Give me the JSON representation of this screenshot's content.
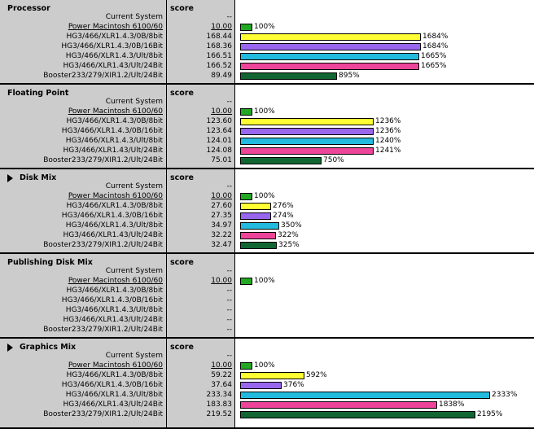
{
  "columns": {
    "score_header": "score"
  },
  "colors": {
    "baseline": "#22a822",
    "XLR1.4.3/0B/8bit": "#ffff33",
    "XLR1.4.3/0B/16bit": "#9966ee",
    "XLR1.4.3/Ult/8bit": "#22bbdd",
    "XLR1.43/Ult/24Bit": "#ee4499",
    "Booster": "#116633"
  },
  "sections": [
    {
      "title": "Processor",
      "has_triangle": false,
      "rows": [
        {
          "label": "Current System",
          "score": "--",
          "pct": null,
          "color": null,
          "underline": false
        },
        {
          "label": "Power Macintosh 6100/60",
          "score": "10.00",
          "pct": "100%",
          "value": 100,
          "color": "#22a822",
          "underline": true
        },
        {
          "label": "HG3/466/XLR1.4.3/0B/8bit",
          "score": "168.44",
          "pct": "1684%",
          "value": 1684,
          "color": "#ffff33",
          "underline": false
        },
        {
          "label": "HG3/466/XLR1.4.3/0B/16Bit",
          "score": "168.36",
          "pct": "1684%",
          "value": 1684,
          "color": "#9966ee",
          "underline": false
        },
        {
          "label": "HG3/466/XLR1.4.3/Ult/8bit",
          "score": "166.51",
          "pct": "1665%",
          "value": 1665,
          "color": "#22bbdd",
          "underline": false
        },
        {
          "label": "HG3/466/XLR1.43/Ult/24Bit",
          "score": "166.52",
          "pct": "1665%",
          "value": 1665,
          "color": "#ee4499",
          "underline": false
        },
        {
          "label": "Booster233/279/XIR1.2/Ult/24Bit",
          "score": "89.49",
          "pct": "895%",
          "value": 895,
          "color": "#116633",
          "underline": false
        }
      ]
    },
    {
      "title": "Floating Point",
      "has_triangle": false,
      "rows": [
        {
          "label": "Current System",
          "score": "--",
          "pct": null,
          "color": null,
          "underline": false
        },
        {
          "label": "Power Macintosh 6100/60",
          "score": "10.00",
          "pct": "100%",
          "value": 100,
          "color": "#22a822",
          "underline": true
        },
        {
          "label": "HG3/466/XLR1.4.3/0B/8bit",
          "score": "123.60",
          "pct": "1236%",
          "value": 1236,
          "color": "#ffff33",
          "underline": false
        },
        {
          "label": "HG3/466/XLR1.4.3/0B/16bit",
          "score": "123.64",
          "pct": "1236%",
          "value": 1236,
          "color": "#9966ee",
          "underline": false
        },
        {
          "label": "HG3/466/XLR1.4.3/Ult/8bit",
          "score": "124.01",
          "pct": "1240%",
          "value": 1240,
          "color": "#22bbdd",
          "underline": false
        },
        {
          "label": "HG3/466/XLR1.43/Ult/24Bit",
          "score": "124.08",
          "pct": "1241%",
          "value": 1241,
          "color": "#ee4499",
          "underline": false
        },
        {
          "label": "Booster233/279/XIR1.2/Ult/24Bit",
          "score": "75.01",
          "pct": "750%",
          "value": 750,
          "color": "#116633",
          "underline": false
        }
      ]
    },
    {
      "title": "Disk Mix",
      "has_triangle": true,
      "rows": [
        {
          "label": "Current System",
          "score": "--",
          "pct": null,
          "color": null,
          "underline": false
        },
        {
          "label": "Power Macintosh 6100/60",
          "score": "10.00",
          "pct": "100%",
          "value": 100,
          "color": "#22a822",
          "underline": true
        },
        {
          "label": "HG3/466/XLR1.4.3/0B/8bit",
          "score": "27.60",
          "pct": "276%",
          "value": 276,
          "color": "#ffff33",
          "underline": false
        },
        {
          "label": "HG3/466/XLR1.4.3/0B/16bit",
          "score": "27.35",
          "pct": "274%",
          "value": 274,
          "color": "#9966ee",
          "underline": false
        },
        {
          "label": "HG3/466/XLR1.4.3/Ult/8bit",
          "score": "34.97",
          "pct": "350%",
          "value": 350,
          "color": "#22bbdd",
          "underline": false
        },
        {
          "label": "HG3/466/XLR1.43/Ult/24Bit",
          "score": "32.22",
          "pct": "322%",
          "value": 322,
          "color": "#ee4499",
          "underline": false
        },
        {
          "label": "Booster233/279/XIR1.2/Ult/24Bit",
          "score": "32.47",
          "pct": "325%",
          "value": 325,
          "color": "#116633",
          "underline": false
        }
      ]
    },
    {
      "title": "Publishing Disk Mix",
      "has_triangle": false,
      "rows": [
        {
          "label": "Current System",
          "score": "--",
          "pct": null,
          "color": null,
          "underline": false
        },
        {
          "label": "Power Macintosh 6100/60",
          "score": "10.00",
          "pct": "100%",
          "value": 100,
          "color": "#22a822",
          "underline": true
        },
        {
          "label": "HG3/466/XLR1.4.3/0B/8bit",
          "score": "--",
          "pct": null,
          "color": null,
          "underline": false
        },
        {
          "label": "HG3/466/XLR1.4.3/0B/16bit",
          "score": "--",
          "pct": null,
          "color": null,
          "underline": false
        },
        {
          "label": "HG3/466/XLR1.4.3/Ult/8bit",
          "score": "--",
          "pct": null,
          "color": null,
          "underline": false
        },
        {
          "label": "HG3/466/XLR1.43/Ult/24Bit",
          "score": "--",
          "pct": null,
          "color": null,
          "underline": false
        },
        {
          "label": "Booster233/279/XIR1.2/Ult/24Bit",
          "score": "--",
          "pct": null,
          "color": null,
          "underline": false
        }
      ]
    },
    {
      "title": "Graphics Mix",
      "has_triangle": true,
      "rows": [
        {
          "label": "Current System",
          "score": "--",
          "pct": null,
          "color": null,
          "underline": false
        },
        {
          "label": "Power Macintosh 6100/60",
          "score": "10.00",
          "pct": "100%",
          "value": 100,
          "color": "#22a822",
          "underline": true
        },
        {
          "label": "HG3/466/XLR1.4.3/0B/8bit",
          "score": "59.22",
          "pct": "592%",
          "value": 592,
          "color": "#ffff33",
          "underline": false
        },
        {
          "label": "HG3/466/XLR1.4.3/0B/16bit",
          "score": "37.64",
          "pct": "376%",
          "value": 376,
          "color": "#9966ee",
          "underline": false
        },
        {
          "label": "HG3/466/XLR1.4.3/Ult/8bit",
          "score": "233.34",
          "pct": "2333%",
          "value": 2333,
          "color": "#22bbdd",
          "underline": false
        },
        {
          "label": "HG3/466/XLR1.43/Ult/24Bit",
          "score": "183.83",
          "pct": "1838%",
          "value": 1838,
          "color": "#ee4499",
          "underline": false
        },
        {
          "label": "Booster233/279/XIR1.2/Ult/24Bit",
          "score": "219.52",
          "pct": "2195%",
          "value": 2195,
          "color": "#116633",
          "underline": false
        }
      ]
    }
  ]
}
